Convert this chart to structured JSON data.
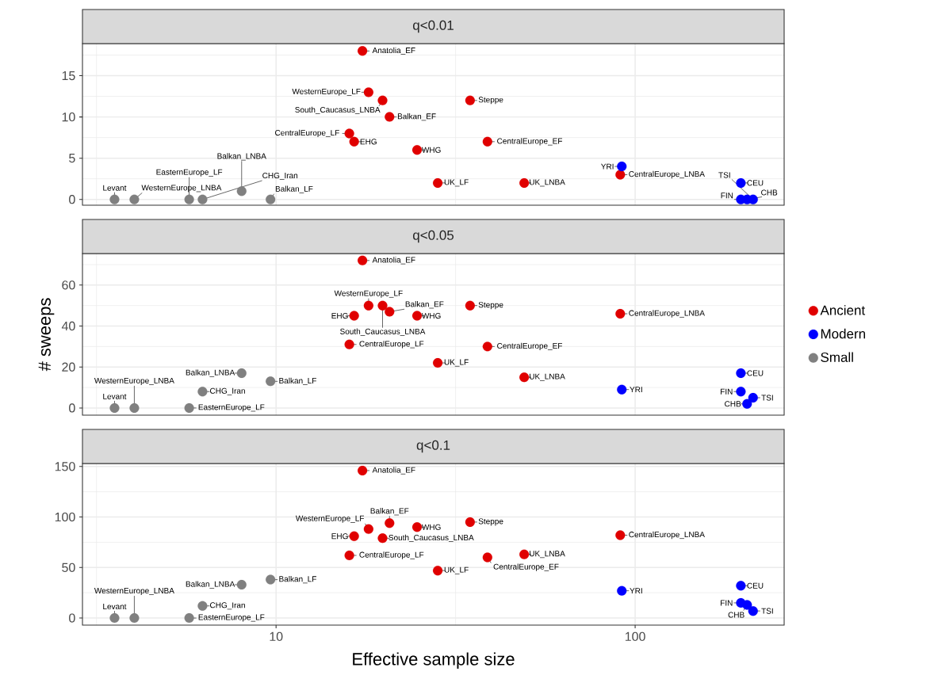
{
  "chart_data": [
    {
      "type": "scatter",
      "title": "q<0.01",
      "log": "x",
      "grid": true,
      "marker": "circle",
      "legend": false,
      "tick_labels": "y",
      "xlim": [
        2.89,
        260
      ],
      "xticks": [
        10,
        100
      ],
      "ylim": [
        -0.7,
        18.9
      ],
      "yticks": [
        0,
        5,
        10,
        15
      ],
      "series": [
        {
          "color": "#e00000",
          "x": [
            17.4,
            18.1,
            19.8,
            20.7,
            16.0,
            16.5,
            24.7,
            28.2,
            34.7,
            38.8,
            49.1,
            90.9
          ],
          "values": [
            18,
            13,
            12,
            10,
            8,
            7,
            6,
            2,
            12,
            7,
            2,
            3
          ]
        },
        {
          "color": "#0000ff",
          "x": [
            91.8,
            197,
            197,
            205,
            213
          ],
          "values": [
            4,
            2,
            0,
            0,
            0
          ]
        },
        {
          "color": "#808080",
          "x": [
            3.55,
            4.03,
            5.73,
            6.24,
            8.02,
            9.65
          ],
          "values": [
            0,
            0,
            0,
            0,
            1,
            0
          ]
        }
      ],
      "annotations": [
        {
          "text": "Anatolia_EF",
          "x": 17.4,
          "y": 18
        },
        {
          "text": "WesternEurope_LF",
          "x": 18.1,
          "y": 13
        },
        {
          "text": "South_Caucasus_LNBA",
          "x": 19.8,
          "y": 12
        },
        {
          "text": "Balkan_EF",
          "x": 20.7,
          "y": 10
        },
        {
          "text": "CentralEurope_LF",
          "x": 16.0,
          "y": 8
        },
        {
          "text": "EHG",
          "x": 16.5,
          "y": 7
        },
        {
          "text": "WHG",
          "x": 24.7,
          "y": 6
        },
        {
          "text": "UK_LF",
          "x": 28.2,
          "y": 2
        },
        {
          "text": "Steppe",
          "x": 34.7,
          "y": 12
        },
        {
          "text": "CentralEurope_EF",
          "x": 38.8,
          "y": 7
        },
        {
          "text": "UK_LNBA",
          "x": 49.1,
          "y": 2
        },
        {
          "text": "CentralEurope_LNBA",
          "x": 90.9,
          "y": 3
        },
        {
          "text": "YRI",
          "x": 91.8,
          "y": 4
        },
        {
          "text": "CEU",
          "x": 197,
          "y": 2
        },
        {
          "text": "FIN",
          "x": 197,
          "y": 0
        },
        {
          "text": "CHB",
          "x": 205,
          "y": 0
        },
        {
          "text": "TSI",
          "x": 213,
          "y": 0
        },
        {
          "text": "Levant",
          "x": 3.55,
          "y": 0
        },
        {
          "text": "WesternEurope_LNBA",
          "x": 4.03,
          "y": 0
        },
        {
          "text": "EasternEurope_LF",
          "x": 5.73,
          "y": 0
        },
        {
          "text": "CHG_Iran",
          "x": 6.24,
          "y": 0
        },
        {
          "text": "Balkan_LNBA",
          "x": 8.02,
          "y": 1
        },
        {
          "text": "Balkan_LF",
          "x": 9.65,
          "y": 0
        }
      ]
    },
    {
      "type": "scatter",
      "title": "q<0.05",
      "ylabel": "# sweeps",
      "log": "x",
      "grid": true,
      "marker": "circle",
      "legend": "right",
      "tick_labels": "y",
      "xlim": [
        2.89,
        260
      ],
      "xticks": [
        10,
        100
      ],
      "ylim": [
        -3.5,
        75.4
      ],
      "yticks": [
        0,
        20,
        40,
        60
      ],
      "series": [
        {
          "name": "Ancient",
          "color": "#e00000",
          "x": [
            17.4,
            18.1,
            19.8,
            20.7,
            16.0,
            16.5,
            24.7,
            28.2,
            34.7,
            38.8,
            49.1,
            90.9
          ],
          "values": [
            72,
            50,
            50,
            47,
            31,
            45,
            45,
            22,
            50,
            30,
            15,
            46
          ]
        },
        {
          "name": "Modern",
          "color": "#0000ff",
          "x": [
            91.8,
            197,
            197,
            205,
            213
          ],
          "values": [
            9,
            17,
            8,
            2,
            5
          ]
        },
        {
          "name": "Small",
          "color": "#808080",
          "x": [
            3.55,
            4.03,
            5.73,
            6.24,
            8.02,
            9.65
          ],
          "values": [
            0,
            0,
            0,
            8,
            17,
            13
          ]
        }
      ],
      "annotations": [
        {
          "text": "Anatolia_EF",
          "x": 17.4,
          "y": 72
        },
        {
          "text": "WesternEurope_LF",
          "x": 18.1,
          "y": 50
        },
        {
          "text": "South_Caucasus_LNBA",
          "x": 19.8,
          "y": 50
        },
        {
          "text": "Balkan_EF",
          "x": 20.7,
          "y": 47
        },
        {
          "text": "CentralEurope_LF",
          "x": 16.0,
          "y": 31
        },
        {
          "text": "EHG",
          "x": 16.5,
          "y": 45
        },
        {
          "text": "WHG",
          "x": 24.7,
          "y": 45
        },
        {
          "text": "UK_LF",
          "x": 28.2,
          "y": 22
        },
        {
          "text": "Steppe",
          "x": 34.7,
          "y": 50
        },
        {
          "text": "CentralEurope_EF",
          "x": 38.8,
          "y": 30
        },
        {
          "text": "UK_LNBA",
          "x": 49.1,
          "y": 15
        },
        {
          "text": "CentralEurope_LNBA",
          "x": 90.9,
          "y": 46
        },
        {
          "text": "YRI",
          "x": 91.8,
          "y": 9
        },
        {
          "text": "CEU",
          "x": 197,
          "y": 17
        },
        {
          "text": "FIN",
          "x": 197,
          "y": 8
        },
        {
          "text": "CHB",
          "x": 205,
          "y": 2
        },
        {
          "text": "TSI",
          "x": 213,
          "y": 5
        },
        {
          "text": "Levant",
          "x": 3.55,
          "y": 0
        },
        {
          "text": "WesternEurope_LNBA",
          "x": 4.03,
          "y": 0
        },
        {
          "text": "EasternEurope_LF",
          "x": 5.73,
          "y": 0
        },
        {
          "text": "CHG_Iran",
          "x": 6.24,
          "y": 8
        },
        {
          "text": "Balkan_LNBA",
          "x": 8.02,
          "y": 17
        },
        {
          "text": "Balkan_LF",
          "x": 9.65,
          "y": 13
        }
      ]
    },
    {
      "type": "scatter",
      "title": "q<0.1",
      "xlabel": "Effective sample size",
      "log": "x",
      "grid": true,
      "marker": "circle",
      "legend": false,
      "xlim": [
        2.89,
        260
      ],
      "xticks": [
        10,
        100
      ],
      "ylim": [
        -7,
        153
      ],
      "yticks": [
        0,
        50,
        100,
        150
      ],
      "series": [
        {
          "color": "#e00000",
          "x": [
            17.4,
            18.1,
            19.8,
            20.7,
            16.0,
            16.5,
            24.7,
            28.2,
            34.7,
            38.8,
            49.1,
            90.9
          ],
          "values": [
            146,
            88,
            79,
            94,
            62,
            81,
            90,
            47,
            95,
            60,
            63,
            82
          ]
        },
        {
          "color": "#0000ff",
          "x": [
            91.8,
            197,
            197,
            205,
            213
          ],
          "values": [
            27,
            32,
            15,
            13,
            7
          ]
        },
        {
          "color": "#808080",
          "x": [
            3.55,
            4.03,
            5.73,
            6.24,
            8.02,
            9.65
          ],
          "values": [
            0,
            0,
            0,
            12,
            33,
            38
          ]
        }
      ],
      "annotations": [
        {
          "text": "Anatolia_EF",
          "x": 17.4,
          "y": 146
        },
        {
          "text": "WesternEurope_LF",
          "x": 18.1,
          "y": 88
        },
        {
          "text": "South_Caucasus_LNBA",
          "x": 19.8,
          "y": 79
        },
        {
          "text": "Balkan_EF",
          "x": 20.7,
          "y": 94
        },
        {
          "text": "CentralEurope_LF",
          "x": 16.0,
          "y": 62
        },
        {
          "text": "EHG",
          "x": 16.5,
          "y": 81
        },
        {
          "text": "WHG",
          "x": 24.7,
          "y": 90
        },
        {
          "text": "UK_LF",
          "x": 28.2,
          "y": 47
        },
        {
          "text": "Steppe",
          "x": 34.7,
          "y": 95
        },
        {
          "text": "CentralEurope_EF",
          "x": 38.8,
          "y": 60
        },
        {
          "text": "UK_LNBA",
          "x": 49.1,
          "y": 63
        },
        {
          "text": "CentralEurope_LNBA",
          "x": 90.9,
          "y": 82
        },
        {
          "text": "YRI",
          "x": 91.8,
          "y": 27
        },
        {
          "text": "CEU",
          "x": 197,
          "y": 32
        },
        {
          "text": "FIN",
          "x": 197,
          "y": 15
        },
        {
          "text": "CHB",
          "x": 205,
          "y": 13
        },
        {
          "text": "TSI",
          "x": 213,
          "y": 7
        },
        {
          "text": "Levant",
          "x": 3.55,
          "y": 0
        },
        {
          "text": "WesternEurope_LNBA",
          "x": 4.03,
          "y": 0
        },
        {
          "text": "EasternEurope_LF",
          "x": 5.73,
          "y": 0
        },
        {
          "text": "CHG_Iran",
          "x": 6.24,
          "y": 12
        },
        {
          "text": "Balkan_LNBA",
          "x": 8.02,
          "y": 33
        },
        {
          "text": "Balkan_LF",
          "x": 9.65,
          "y": 38
        }
      ]
    }
  ]
}
